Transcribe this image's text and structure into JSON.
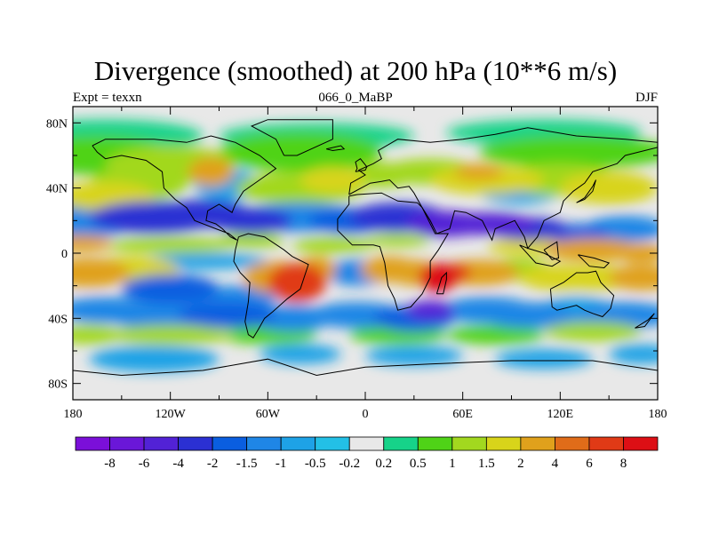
{
  "title": "Divergence (smoothed) at 200 hPa (10**6 m/s)",
  "subtitle_left": "Expt = texxn",
  "subtitle_center": "066_0_MaBP",
  "subtitle_right": "DJF",
  "colors": {
    "land_outline": "#000000",
    "palette": [
      "#7b0fd9",
      "#6a17d8",
      "#5222d6",
      "#2b30d3",
      "#0a5ee0",
      "#1f86e6",
      "#1ea2e6",
      "#23c0e6",
      "#e8e8e8",
      "#16d389",
      "#4fd317",
      "#a2d81f",
      "#d8d41a",
      "#e0a11c",
      "#e06c19",
      "#e03a16",
      "#dd0f15"
    ]
  },
  "chart_data": {
    "type": "filled-contour-map",
    "projection": "cylindrical-equidistant",
    "title": "Divergence (smoothed) at 200 hPa (10**6 m/s)",
    "variable": "divergence (smoothed)",
    "level": "200 hPa",
    "units": "10**6 m/s",
    "experiment": "texxn",
    "period": "066_0_MaBP",
    "season": "DJF",
    "lon_range": [
      -180,
      180
    ],
    "lat_range": [
      -90,
      90
    ],
    "x_ticks": [
      {
        "value": -180,
        "label": "180"
      },
      {
        "value": -120,
        "label": "120W"
      },
      {
        "value": -60,
        "label": "60W"
      },
      {
        "value": 0,
        "label": "0"
      },
      {
        "value": 60,
        "label": "60E"
      },
      {
        "value": 120,
        "label": "120E"
      },
      {
        "value": 180,
        "label": "180"
      }
    ],
    "y_ticks": [
      {
        "value": 80,
        "label": "80N"
      },
      {
        "value": 40,
        "label": "40N"
      },
      {
        "value": 0,
        "label": "0"
      },
      {
        "value": -40,
        "label": "40S"
      },
      {
        "value": -80,
        "label": "80S"
      }
    ],
    "contour_levels": [
      -8,
      -6,
      -4,
      -2,
      -1.5,
      -1,
      -0.5,
      -0.2,
      0.2,
      0.5,
      1,
      1.5,
      2,
      4,
      6,
      8
    ],
    "colorbar_labels": [
      "-8",
      "-6",
      "-4",
      "-2",
      "-1.5",
      "-1",
      "-0.5",
      "-0.2",
      "0.2",
      "0.5",
      "1",
      "1.5",
      "2",
      "4",
      "6",
      "8"
    ],
    "field_features": [
      {
        "lon": 60,
        "lat": 15,
        "value": -4,
        "note": "strong convergence, Middle East / Tibet band"
      },
      {
        "lon": -150,
        "lat": 10,
        "value": -2,
        "note": "convergence band N Pacific"
      },
      {
        "lon": 45,
        "lat": -15,
        "value": 6,
        "note": "divergence maximum over E Africa / Madagascar"
      },
      {
        "lon": -45,
        "lat": -15,
        "value": 4,
        "note": "divergence over South America"
      },
      {
        "lon": 140,
        "lat": 0,
        "value": 2,
        "note": "divergence over maritime continent"
      },
      {
        "lon": -90,
        "lat": 50,
        "value": 2,
        "note": "divergence N America"
      },
      {
        "lon": 75,
        "lat": 45,
        "value": 1.5,
        "note": "divergence central Asia"
      },
      {
        "lon": 40,
        "lat": -35,
        "value": -4,
        "note": "convergence SE Africa"
      }
    ]
  }
}
